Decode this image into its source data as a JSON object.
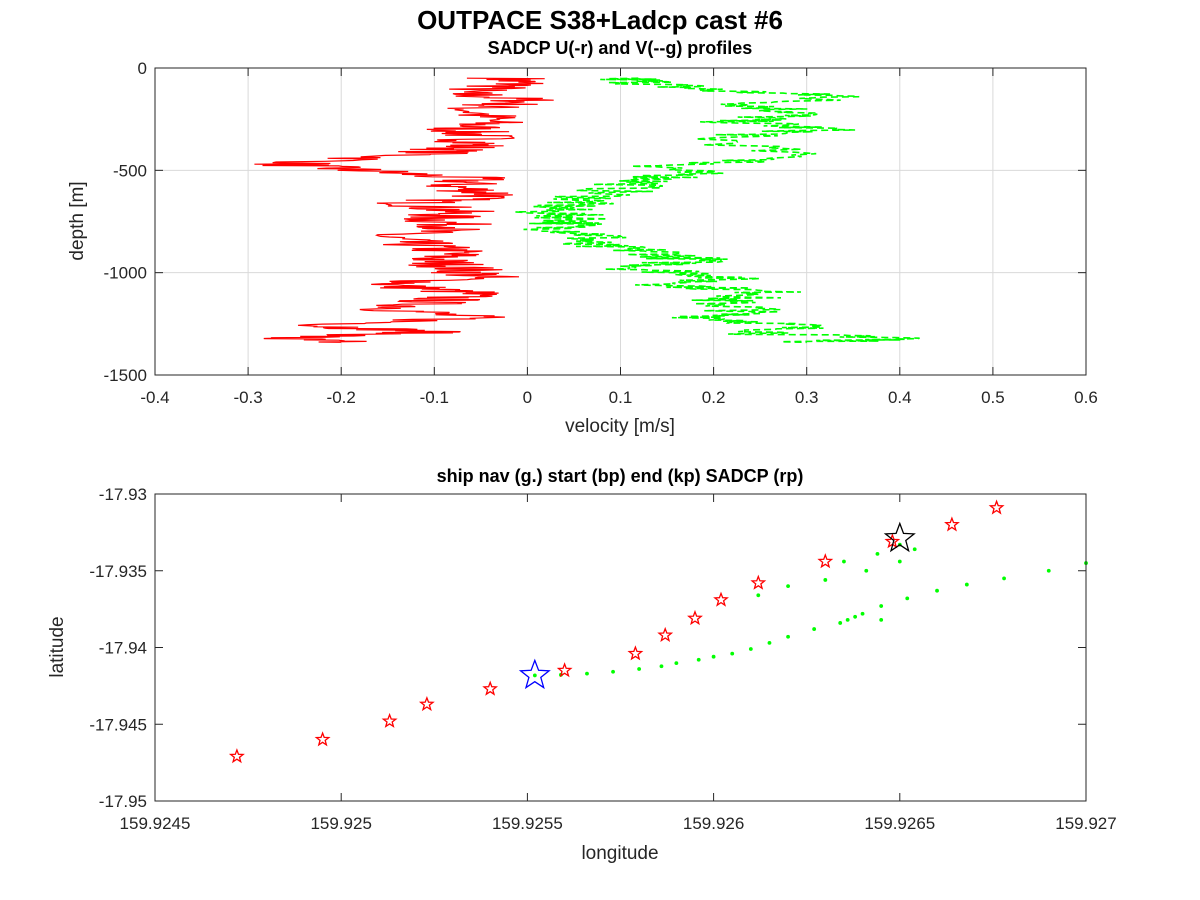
{
  "figure": {
    "title": "OUTPACE S38+Ladcp cast #6"
  },
  "chart_data": [
    {
      "type": "line",
      "title": "SADCP U(-r) and V(--g) profiles",
      "xlabel": "velocity [m/s]",
      "ylabel": "depth [m]",
      "xlim": [
        -0.4,
        0.6
      ],
      "ylim": [
        -1500,
        0
      ],
      "xticks": [
        "-0.4",
        "-0.3",
        "-0.2",
        "-0.1",
        "0",
        "0.1",
        "0.2",
        "0.3",
        "0.4",
        "0.5",
        "0.6"
      ],
      "yticks": [
        "0",
        "-500",
        "-1000",
        "-1500"
      ],
      "grid": true,
      "series": [
        {
          "label": "U",
          "color": "#ff0000",
          "style": "solid",
          "points": [
            [
              -0.02,
              -50
            ],
            [
              -0.01,
              -80
            ],
            [
              -0.08,
              -120
            ],
            [
              0.0,
              -160
            ],
            [
              -0.06,
              -200
            ],
            [
              -0.04,
              -260
            ],
            [
              -0.07,
              -300
            ],
            [
              -0.05,
              -340
            ],
            [
              -0.06,
              -380
            ],
            [
              -0.11,
              -420
            ],
            [
              -0.26,
              -470
            ],
            [
              -0.18,
              -500
            ],
            [
              -0.06,
              -540
            ],
            [
              -0.08,
              -580
            ],
            [
              -0.03,
              -620
            ],
            [
              -0.12,
              -660
            ],
            [
              -0.08,
              -700
            ],
            [
              -0.1,
              -740
            ],
            [
              -0.07,
              -780
            ],
            [
              -0.16,
              -820
            ],
            [
              -0.12,
              -860
            ],
            [
              -0.08,
              -900
            ],
            [
              -0.1,
              -940
            ],
            [
              -0.07,
              -980
            ],
            [
              -0.05,
              -1020
            ],
            [
              -0.15,
              -1060
            ],
            [
              -0.06,
              -1100
            ],
            [
              -0.1,
              -1140
            ],
            [
              -0.14,
              -1180
            ],
            [
              -0.06,
              -1220
            ],
            [
              -0.22,
              -1260
            ],
            [
              -0.1,
              -1290
            ],
            [
              -0.27,
              -1320
            ],
            [
              -0.2,
              -1340
            ]
          ]
        },
        {
          "label": "V",
          "color": "#00ff00",
          "style": "dashed",
          "points": [
            [
              0.1,
              -50
            ],
            [
              0.14,
              -80
            ],
            [
              0.2,
              -110
            ],
            [
              0.35,
              -140
            ],
            [
              0.24,
              -180
            ],
            [
              0.3,
              -220
            ],
            [
              0.22,
              -260
            ],
            [
              0.32,
              -300
            ],
            [
              0.2,
              -340
            ],
            [
              0.29,
              -440
            ],
            [
              0.15,
              -480
            ],
            [
              0.17,
              -520
            ],
            [
              0.12,
              -560
            ],
            [
              0.08,
              -620
            ],
            [
              0.05,
              -660
            ],
            [
              0.02,
              -700
            ],
            [
              0.06,
              -740
            ],
            [
              0.03,
              -780
            ],
            [
              0.08,
              -820
            ],
            [
              0.05,
              -860
            ],
            [
              0.14,
              -900
            ],
            [
              0.18,
              -940
            ],
            [
              0.12,
              -980
            ],
            [
              0.22,
              -1020
            ],
            [
              0.16,
              -1060
            ],
            [
              0.27,
              -1100
            ],
            [
              0.2,
              -1140
            ],
            [
              0.24,
              -1180
            ],
            [
              0.2,
              -1220
            ],
            [
              0.29,
              -1260
            ],
            [
              0.26,
              -1300
            ],
            [
              0.42,
              -1320
            ],
            [
              0.3,
              -1340
            ]
          ]
        }
      ]
    },
    {
      "type": "scatter",
      "title": "ship nav (g.) start (bp) end (kp) SADCP (rp)",
      "xlabel": "longitude",
      "ylabel": "latitude",
      "xlim": [
        159.9245,
        159.927
      ],
      "ylim": [
        -17.95,
        -17.93
      ],
      "xticks": [
        "159.9245",
        "159.925",
        "159.9255",
        "159.926",
        "159.9265",
        "159.927"
      ],
      "yticks": [
        "-17.93",
        "-17.935",
        "-17.94",
        "-17.945",
        "-17.95"
      ],
      "grid": false,
      "nav_color": "#00ff00",
      "nav": [
        [
          159.92552,
          -17.94182
        ],
        [
          159.92559,
          -17.94178
        ],
        [
          159.92566,
          -17.9417
        ],
        [
          159.92573,
          -17.94158
        ],
        [
          159.9258,
          -17.9414
        ],
        [
          159.92586,
          -17.94122
        ],
        [
          159.9259,
          -17.94102
        ],
        [
          159.92596,
          -17.9408
        ],
        [
          159.926,
          -17.9406
        ],
        [
          159.92605,
          -17.9404
        ],
        [
          159.9261,
          -17.9401
        ],
        [
          159.92615,
          -17.9397
        ],
        [
          159.9262,
          -17.9393
        ],
        [
          159.92627,
          -17.9388
        ],
        [
          159.92634,
          -17.9384
        ],
        [
          159.9264,
          -17.9378
        ],
        [
          159.92645,
          -17.9373
        ],
        [
          159.92652,
          -17.9368
        ],
        [
          159.9266,
          -17.9363
        ],
        [
          159.92668,
          -17.9359
        ],
        [
          159.92678,
          -17.9355
        ],
        [
          159.9269,
          -17.935
        ],
        [
          159.927,
          -17.9345
        ],
        [
          159.92612,
          -17.9366
        ],
        [
          159.9262,
          -17.936
        ],
        [
          159.9263,
          -17.9356
        ],
        [
          159.92641,
          -17.935
        ],
        [
          159.9265,
          -17.9344
        ],
        [
          159.92635,
          -17.9344
        ],
        [
          159.92644,
          -17.9339
        ],
        [
          159.92654,
          -17.9336
        ],
        [
          159.92638,
          -17.938
        ],
        [
          159.92636,
          -17.9382
        ],
        [
          159.92645,
          -17.9382
        ],
        [
          159.9265,
          -17.9333
        ]
      ],
      "sadcp_color": "#ff0000",
      "sadcp": [
        [
          159.92472,
          -17.9471
        ],
        [
          159.92495,
          -17.946
        ],
        [
          159.92513,
          -17.9448
        ],
        [
          159.92523,
          -17.9437
        ],
        [
          159.9254,
          -17.9427
        ],
        [
          159.9256,
          -17.9415
        ],
        [
          159.92579,
          -17.9404
        ],
        [
          159.92587,
          -17.9392
        ],
        [
          159.92595,
          -17.9381
        ],
        [
          159.92602,
          -17.9369
        ],
        [
          159.92612,
          -17.9358
        ],
        [
          159.9263,
          -17.9344
        ],
        [
          159.92648,
          -17.9331
        ],
        [
          159.92664,
          -17.932
        ],
        [
          159.92676,
          -17.9309
        ]
      ],
      "start": {
        "color": "#0000ff",
        "point": [
          159.92552,
          -17.94182
        ]
      },
      "end": {
        "color": "#000000",
        "point": [
          159.9265,
          -17.9329
        ]
      }
    }
  ]
}
